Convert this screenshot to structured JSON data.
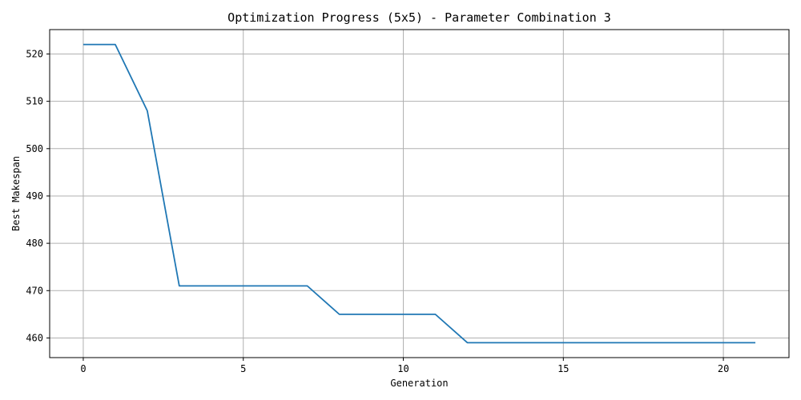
{
  "chart_data": {
    "type": "line",
    "title": "Optimization Progress (5x5) - Parameter Combination 3",
    "xlabel": "Generation",
    "ylabel": "Best Makespan",
    "xlim": [
      -1.05,
      22.05
    ],
    "ylim": [
      455.85,
      525.15
    ],
    "xticks": [
      0,
      5,
      10,
      15,
      20
    ],
    "yticks": [
      460,
      470,
      480,
      490,
      500,
      510,
      520
    ],
    "grid": true,
    "series": [
      {
        "color": "#1f77b4",
        "x": [
          0,
          1,
          2,
          3,
          4,
          5,
          6,
          7,
          8,
          9,
          10,
          11,
          12,
          13,
          14,
          15,
          16,
          17,
          18,
          19,
          20,
          21
        ],
        "y": [
          522,
          522,
          508,
          471,
          471,
          471,
          471,
          471,
          465,
          465,
          465,
          465,
          459,
          459,
          459,
          459,
          459,
          459,
          459,
          459,
          459,
          459
        ]
      }
    ]
  }
}
